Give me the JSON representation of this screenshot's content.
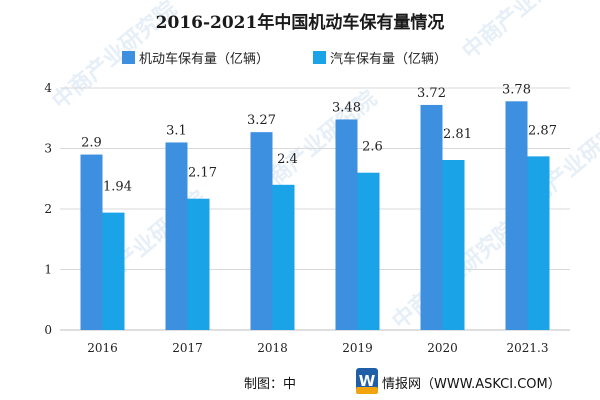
{
  "colors": {
    "series1": "#3d8fe0",
    "series2": "#1aa3e6",
    "grid": "#d9d9d9",
    "axis": "#bfbfbf",
    "logo_bg": "#1e5fa8",
    "logo_accent": "#f2a40f"
  },
  "watermark_text": "中商产业研究院",
  "footer": {
    "prefix": "制图：中",
    "suffix": "情报网（WWW.ASKCI.COM）",
    "logo_letter": "W"
  },
  "chart_data": {
    "type": "bar",
    "title": "2016-2021年中国机动车保有量情况",
    "categories": [
      "2016",
      "2017",
      "2018",
      "2019",
      "2020",
      "2021.3"
    ],
    "series": [
      {
        "name": "机动车保有量（亿辆）",
        "values": [
          2.9,
          3.1,
          3.27,
          3.48,
          3.72,
          3.78
        ],
        "labels": [
          "2.9",
          "3.1",
          "3.27",
          "3.48",
          "3.72",
          "3.78"
        ]
      },
      {
        "name": "汽车保有量（亿辆）",
        "values": [
          1.94,
          2.17,
          2.4,
          2.6,
          2.81,
          2.87
        ],
        "labels": [
          "1.94",
          "2.17",
          "2.4",
          "2.6",
          "2.81",
          "2.87"
        ]
      }
    ],
    "yticks": [
      "0",
      "1",
      "2",
      "3",
      "4"
    ],
    "ylim": [
      0,
      4
    ],
    "grid": true,
    "legend_position": "top"
  }
}
